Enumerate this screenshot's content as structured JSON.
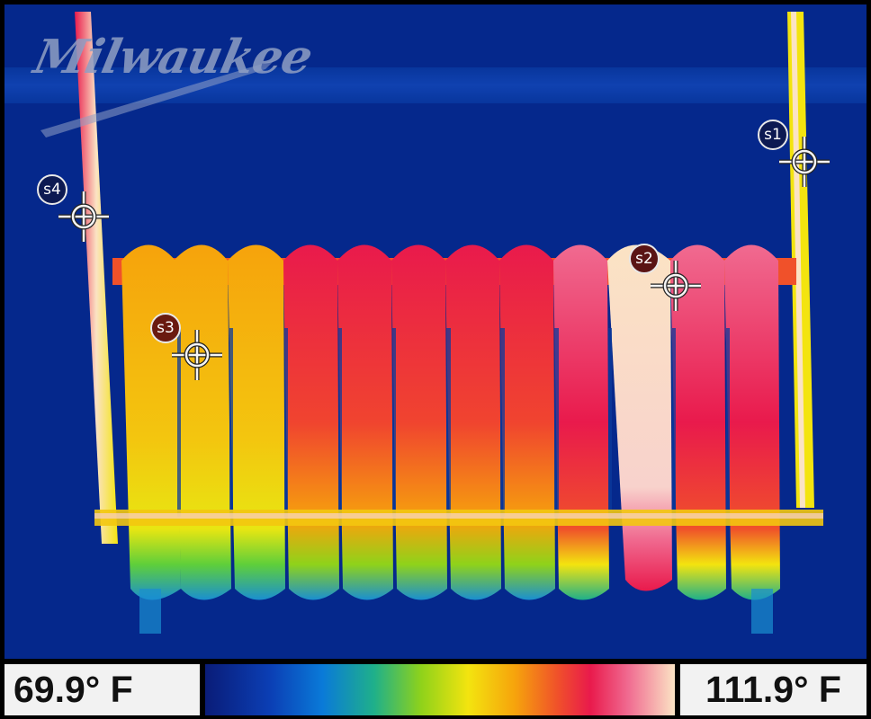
{
  "brand": {
    "logo_text": "Milwaukee"
  },
  "spots": [
    {
      "id": "s1",
      "label": "s1",
      "badge_color": "#0d1a52"
    },
    {
      "id": "s2",
      "label": "s2",
      "badge_color": "#5a1414"
    },
    {
      "id": "s3",
      "label": "s3",
      "badge_color": "#6a1a10"
    },
    {
      "id": "s4",
      "label": "s4",
      "badge_color": "#0d1a52"
    }
  ],
  "scale": {
    "min_label": "69.9° F",
    "max_label": "111.9° F",
    "palette": [
      "#0a1c78",
      "#0b3fb5",
      "#0a7ad8",
      "#1fb08a",
      "#8fd21a",
      "#f3e40f",
      "#f6a30c",
      "#f0512a",
      "#e91a4c",
      "#f06a90",
      "#fbe3c4"
    ]
  }
}
